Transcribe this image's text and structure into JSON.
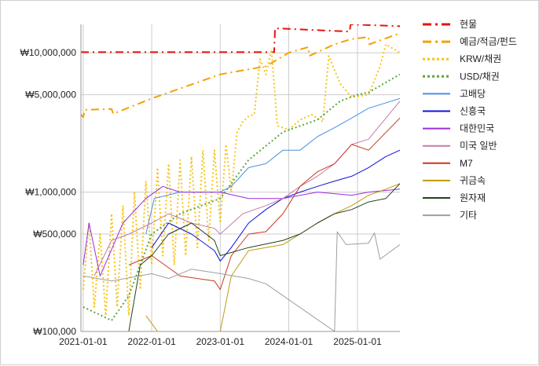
{
  "chart_data": {
    "type": "line",
    "title": "",
    "xlabel": "",
    "ylabel": "",
    "y_scale": "log",
    "ylim": [
      100000,
      16000000
    ],
    "xlim": [
      "2020-12-20",
      "2025-08-15"
    ],
    "grid": true,
    "legend_position": "right",
    "x_ticks": [
      {
        "date": "2021-01-01",
        "label": "2021-01-01"
      },
      {
        "date": "2022-01-01",
        "label": "2022-01-01"
      },
      {
        "date": "2023-01-01",
        "label": "2023-01-01"
      },
      {
        "date": "2024-01-01",
        "label": "2024-01-01"
      },
      {
        "date": "2025-01-01",
        "label": "2025-01-01"
      }
    ],
    "y_ticks": [
      {
        "value": 10000000,
        "label": "₩10,000,000"
      },
      {
        "value": 5000000,
        "label": "₩5,000,000"
      },
      {
        "value": 1000000,
        "label": "₩1,000,000"
      },
      {
        "value": 500000,
        "label": "₩500,000"
      },
      {
        "value": 100000,
        "label": "₩100,000"
      }
    ],
    "series": [
      {
        "name": "현물",
        "color": "#e8120c",
        "style": "dashdot",
        "width": 2,
        "points": [
          [
            "2020-12-20",
            10100000
          ],
          [
            "2023-10-15",
            10100000
          ],
          [
            "2023-10-20",
            15000000
          ],
          [
            "2024-11-20",
            14200000
          ],
          [
            "2024-11-25",
            16000000
          ],
          [
            "2025-08-15",
            15500000
          ]
        ]
      },
      {
        "name": "예금/적금/펀드",
        "color": "#f5a000",
        "style": "dashdot",
        "width": 2,
        "points": [
          [
            "2020-12-20",
            3600000
          ],
          [
            "2021-01-01",
            3450000
          ],
          [
            "2021-01-10",
            3900000
          ],
          [
            "2021-06-01",
            3950000
          ],
          [
            "2021-06-10",
            3650000
          ],
          [
            "2022-01-01",
            4700000
          ],
          [
            "2023-01-01",
            7000000
          ],
          [
            "2023-09-01",
            8000000
          ],
          [
            "2024-01-01",
            10000000
          ],
          [
            "2024-04-15",
            11000000
          ],
          [
            "2024-04-20",
            9500000
          ],
          [
            "2024-09-01",
            11500000
          ],
          [
            "2024-11-25",
            12500000
          ],
          [
            "2025-03-01",
            13000000
          ],
          [
            "2025-03-05",
            11500000
          ],
          [
            "2025-08-15",
            13800000
          ]
        ]
      },
      {
        "name": "KRW/채권",
        "color": "#f5c518",
        "style": "dotted",
        "width": 2,
        "points": [
          [
            "2021-01-01",
            200000
          ],
          [
            "2021-02-01",
            600000
          ],
          [
            "2021-03-01",
            150000
          ],
          [
            "2021-04-01",
            500000
          ],
          [
            "2021-05-01",
            130000
          ],
          [
            "2021-06-01",
            700000
          ],
          [
            "2021-07-01",
            150000
          ],
          [
            "2021-08-01",
            800000
          ],
          [
            "2021-09-01",
            130000
          ],
          [
            "2021-10-01",
            1000000
          ],
          [
            "2021-11-01",
            200000
          ],
          [
            "2021-12-01",
            1200000
          ],
          [
            "2022-01-01",
            300000
          ],
          [
            "2022-02-01",
            1500000
          ],
          [
            "2022-03-01",
            350000
          ],
          [
            "2022-04-01",
            1600000
          ],
          [
            "2022-05-01",
            300000
          ],
          [
            "2022-06-01",
            1700000
          ],
          [
            "2022-07-01",
            350000
          ],
          [
            "2022-08-01",
            1800000
          ],
          [
            "2022-09-01",
            400000
          ],
          [
            "2022-10-01",
            2000000
          ],
          [
            "2022-11-01",
            450000
          ],
          [
            "2022-12-01",
            2000000
          ],
          [
            "2023-01-01",
            600000
          ],
          [
            "2023-02-01",
            2200000
          ],
          [
            "2023-03-01",
            1000000
          ],
          [
            "2023-04-01",
            2700000
          ],
          [
            "2023-05-01",
            3200000
          ],
          [
            "2023-06-01",
            3500000
          ],
          [
            "2023-07-01",
            3600000
          ],
          [
            "2023-08-01",
            9000000
          ],
          [
            "2023-09-01",
            7000000
          ],
          [
            "2023-10-01",
            10500000
          ],
          [
            "2023-11-01",
            3000000
          ],
          [
            "2024-01-01",
            2800000
          ],
          [
            "2024-03-01",
            3300000
          ],
          [
            "2024-05-01",
            3600000
          ],
          [
            "2024-07-01",
            3200000
          ],
          [
            "2024-08-01",
            9500000
          ],
          [
            "2024-10-01",
            6000000
          ],
          [
            "2024-12-01",
            4800000
          ],
          [
            "2025-03-01",
            5000000
          ],
          [
            "2025-05-01",
            8000000
          ],
          [
            "2025-06-01",
            11500000
          ],
          [
            "2025-08-15",
            10000000
          ]
        ]
      },
      {
        "name": "USD/채권",
        "color": "#58a83b",
        "style": "dotted",
        "width": 2,
        "points": [
          [
            "2021-01-01",
            150000
          ],
          [
            "2021-06-01",
            120000
          ],
          [
            "2021-09-01",
            180000
          ],
          [
            "2022-01-01",
            500000
          ],
          [
            "2022-06-01",
            700000
          ],
          [
            "2023-01-01",
            900000
          ],
          [
            "2023-06-01",
            1700000
          ],
          [
            "2023-12-01",
            2700000
          ],
          [
            "2024-06-01",
            3300000
          ],
          [
            "2024-10-01",
            4500000
          ],
          [
            "2025-01-01",
            5000000
          ],
          [
            "2025-03-01",
            5200000
          ],
          [
            "2025-08-15",
            7000000
          ]
        ]
      },
      {
        "name": "고배당",
        "color": "#4a8fe3",
        "style": "solid",
        "width": 1,
        "points": [
          [
            "2021-12-01",
            500000
          ],
          [
            "2022-01-15",
            900000
          ],
          [
            "2022-06-01",
            1000000
          ],
          [
            "2022-10-01",
            1000000
          ],
          [
            "2023-01-01",
            1000000
          ],
          [
            "2023-03-01",
            1100000
          ],
          [
            "2023-06-01",
            1500000
          ],
          [
            "2023-09-01",
            1600000
          ],
          [
            "2023-12-01",
            2000000
          ],
          [
            "2024-03-01",
            2000000
          ],
          [
            "2024-06-01",
            2500000
          ],
          [
            "2024-09-01",
            2900000
          ],
          [
            "2024-12-01",
            3400000
          ],
          [
            "2025-03-01",
            4000000
          ],
          [
            "2025-08-15",
            4700000
          ]
        ]
      },
      {
        "name": "신흥국",
        "color": "#1010d8",
        "style": "solid",
        "width": 1,
        "points": [
          [
            "2022-01-01",
            400000
          ],
          [
            "2022-04-01",
            600000
          ],
          [
            "2022-08-01",
            500000
          ],
          [
            "2022-12-01",
            380000
          ],
          [
            "2023-01-01",
            320000
          ],
          [
            "2023-03-01",
            400000
          ],
          [
            "2023-06-01",
            600000
          ],
          [
            "2023-09-01",
            750000
          ],
          [
            "2023-12-01",
            900000
          ],
          [
            "2024-03-01",
            1000000
          ],
          [
            "2024-06-01",
            1100000
          ],
          [
            "2024-09-01",
            1200000
          ],
          [
            "2024-12-01",
            1300000
          ],
          [
            "2025-03-01",
            1500000
          ],
          [
            "2025-06-01",
            1800000
          ],
          [
            "2025-08-15",
            2000000
          ]
        ]
      },
      {
        "name": "대한민국",
        "color": "#9b2de0",
        "style": "solid",
        "width": 1,
        "points": [
          [
            "2021-01-01",
            300000
          ],
          [
            "2021-02-01",
            600000
          ],
          [
            "2021-04-01",
            250000
          ],
          [
            "2021-08-01",
            600000
          ],
          [
            "2021-12-01",
            900000
          ],
          [
            "2022-03-01",
            1100000
          ],
          [
            "2022-06-01",
            1000000
          ],
          [
            "2022-10-01",
            1000000
          ],
          [
            "2023-01-01",
            1000000
          ],
          [
            "2023-06-01",
            900000
          ],
          [
            "2023-12-01",
            900000
          ],
          [
            "2024-06-01",
            1000000
          ],
          [
            "2024-12-01",
            950000
          ],
          [
            "2025-03-01",
            1000000
          ],
          [
            "2025-08-15",
            1050000
          ]
        ]
      },
      {
        "name": "미국 일반",
        "color": "#c97aaa",
        "style": "solid",
        "width": 1,
        "points": [
          [
            "2021-03-01",
            250000
          ],
          [
            "2021-06-01",
            450000
          ],
          [
            "2021-09-01",
            500000
          ],
          [
            "2022-01-01",
            600000
          ],
          [
            "2022-04-01",
            700000
          ],
          [
            "2022-08-01",
            600000
          ],
          [
            "2022-12-01",
            550000
          ],
          [
            "2023-01-01",
            500000
          ],
          [
            "2023-05-01",
            700000
          ],
          [
            "2023-09-01",
            800000
          ],
          [
            "2023-12-01",
            900000
          ],
          [
            "2024-03-01",
            1100000
          ],
          [
            "2024-06-01",
            1300000
          ],
          [
            "2024-09-01",
            1600000
          ],
          [
            "2024-12-01",
            2200000
          ],
          [
            "2025-03-01",
            2400000
          ],
          [
            "2025-08-15",
            4500000
          ]
        ]
      },
      {
        "name": "M7",
        "color": "#c8381e",
        "style": "solid",
        "width": 1,
        "points": [
          [
            "2021-09-01",
            300000
          ],
          [
            "2022-01-01",
            350000
          ],
          [
            "2022-06-01",
            250000
          ],
          [
            "2022-12-01",
            230000
          ],
          [
            "2023-01-01",
            200000
          ],
          [
            "2023-03-01",
            350000
          ],
          [
            "2023-06-01",
            500000
          ],
          [
            "2023-09-01",
            520000
          ],
          [
            "2023-12-01",
            700000
          ],
          [
            "2024-03-01",
            1100000
          ],
          [
            "2024-06-01",
            1400000
          ],
          [
            "2024-09-01",
            1600000
          ],
          [
            "2024-12-01",
            2200000
          ],
          [
            "2025-03-01",
            2000000
          ],
          [
            "2025-08-15",
            3400000
          ]
        ]
      },
      {
        "name": "귀금속",
        "color": "#c09a10",
        "style": "solid",
        "width": 1,
        "points": [
          [
            "2021-12-01",
            130000
          ],
          [
            "2022-02-01",
            100000
          ],
          [
            "2023-01-01",
            100000
          ],
          [
            "2023-03-01",
            250000
          ],
          [
            "2023-06-01",
            380000
          ],
          [
            "2023-12-01",
            420000
          ],
          [
            "2024-03-01",
            500000
          ],
          [
            "2024-06-01",
            600000
          ],
          [
            "2024-09-01",
            700000
          ],
          [
            "2024-12-01",
            800000
          ],
          [
            "2025-03-01",
            950000
          ],
          [
            "2025-06-01",
            1050000
          ],
          [
            "2025-08-15",
            1150000
          ]
        ]
      },
      {
        "name": "원자재",
        "color": "#24421a",
        "style": "solid",
        "width": 1,
        "points": [
          [
            "2021-09-01",
            100000
          ],
          [
            "2021-11-01",
            300000
          ],
          [
            "2022-01-01",
            350000
          ],
          [
            "2022-04-01",
            500000
          ],
          [
            "2022-08-01",
            600000
          ],
          [
            "2022-12-01",
            450000
          ],
          [
            "2023-01-01",
            350000
          ],
          [
            "2023-06-01",
            400000
          ],
          [
            "2023-12-01",
            450000
          ],
          [
            "2024-03-01",
            500000
          ],
          [
            "2024-06-01",
            600000
          ],
          [
            "2024-09-01",
            700000
          ],
          [
            "2024-12-01",
            750000
          ],
          [
            "2025-03-01",
            850000
          ],
          [
            "2025-06-01",
            900000
          ],
          [
            "2025-08-15",
            1150000
          ]
        ]
      },
      {
        "name": "기타",
        "color": "#9e9e9e",
        "style": "solid",
        "width": 1,
        "points": [
          [
            "2021-01-01",
            250000
          ],
          [
            "2021-06-01",
            230000
          ],
          [
            "2022-01-01",
            260000
          ],
          [
            "2022-04-01",
            240000
          ],
          [
            "2022-08-01",
            280000
          ],
          [
            "2023-01-01",
            260000
          ],
          [
            "2023-06-01",
            240000
          ],
          [
            "2023-09-01",
            220000
          ],
          [
            "2024-09-01",
            100000
          ],
          [
            "2024-09-15",
            520000
          ],
          [
            "2024-11-01",
            420000
          ],
          [
            "2025-03-01",
            430000
          ],
          [
            "2025-04-01",
            510000
          ],
          [
            "2025-05-01",
            330000
          ],
          [
            "2025-08-15",
            420000
          ]
        ]
      }
    ]
  }
}
